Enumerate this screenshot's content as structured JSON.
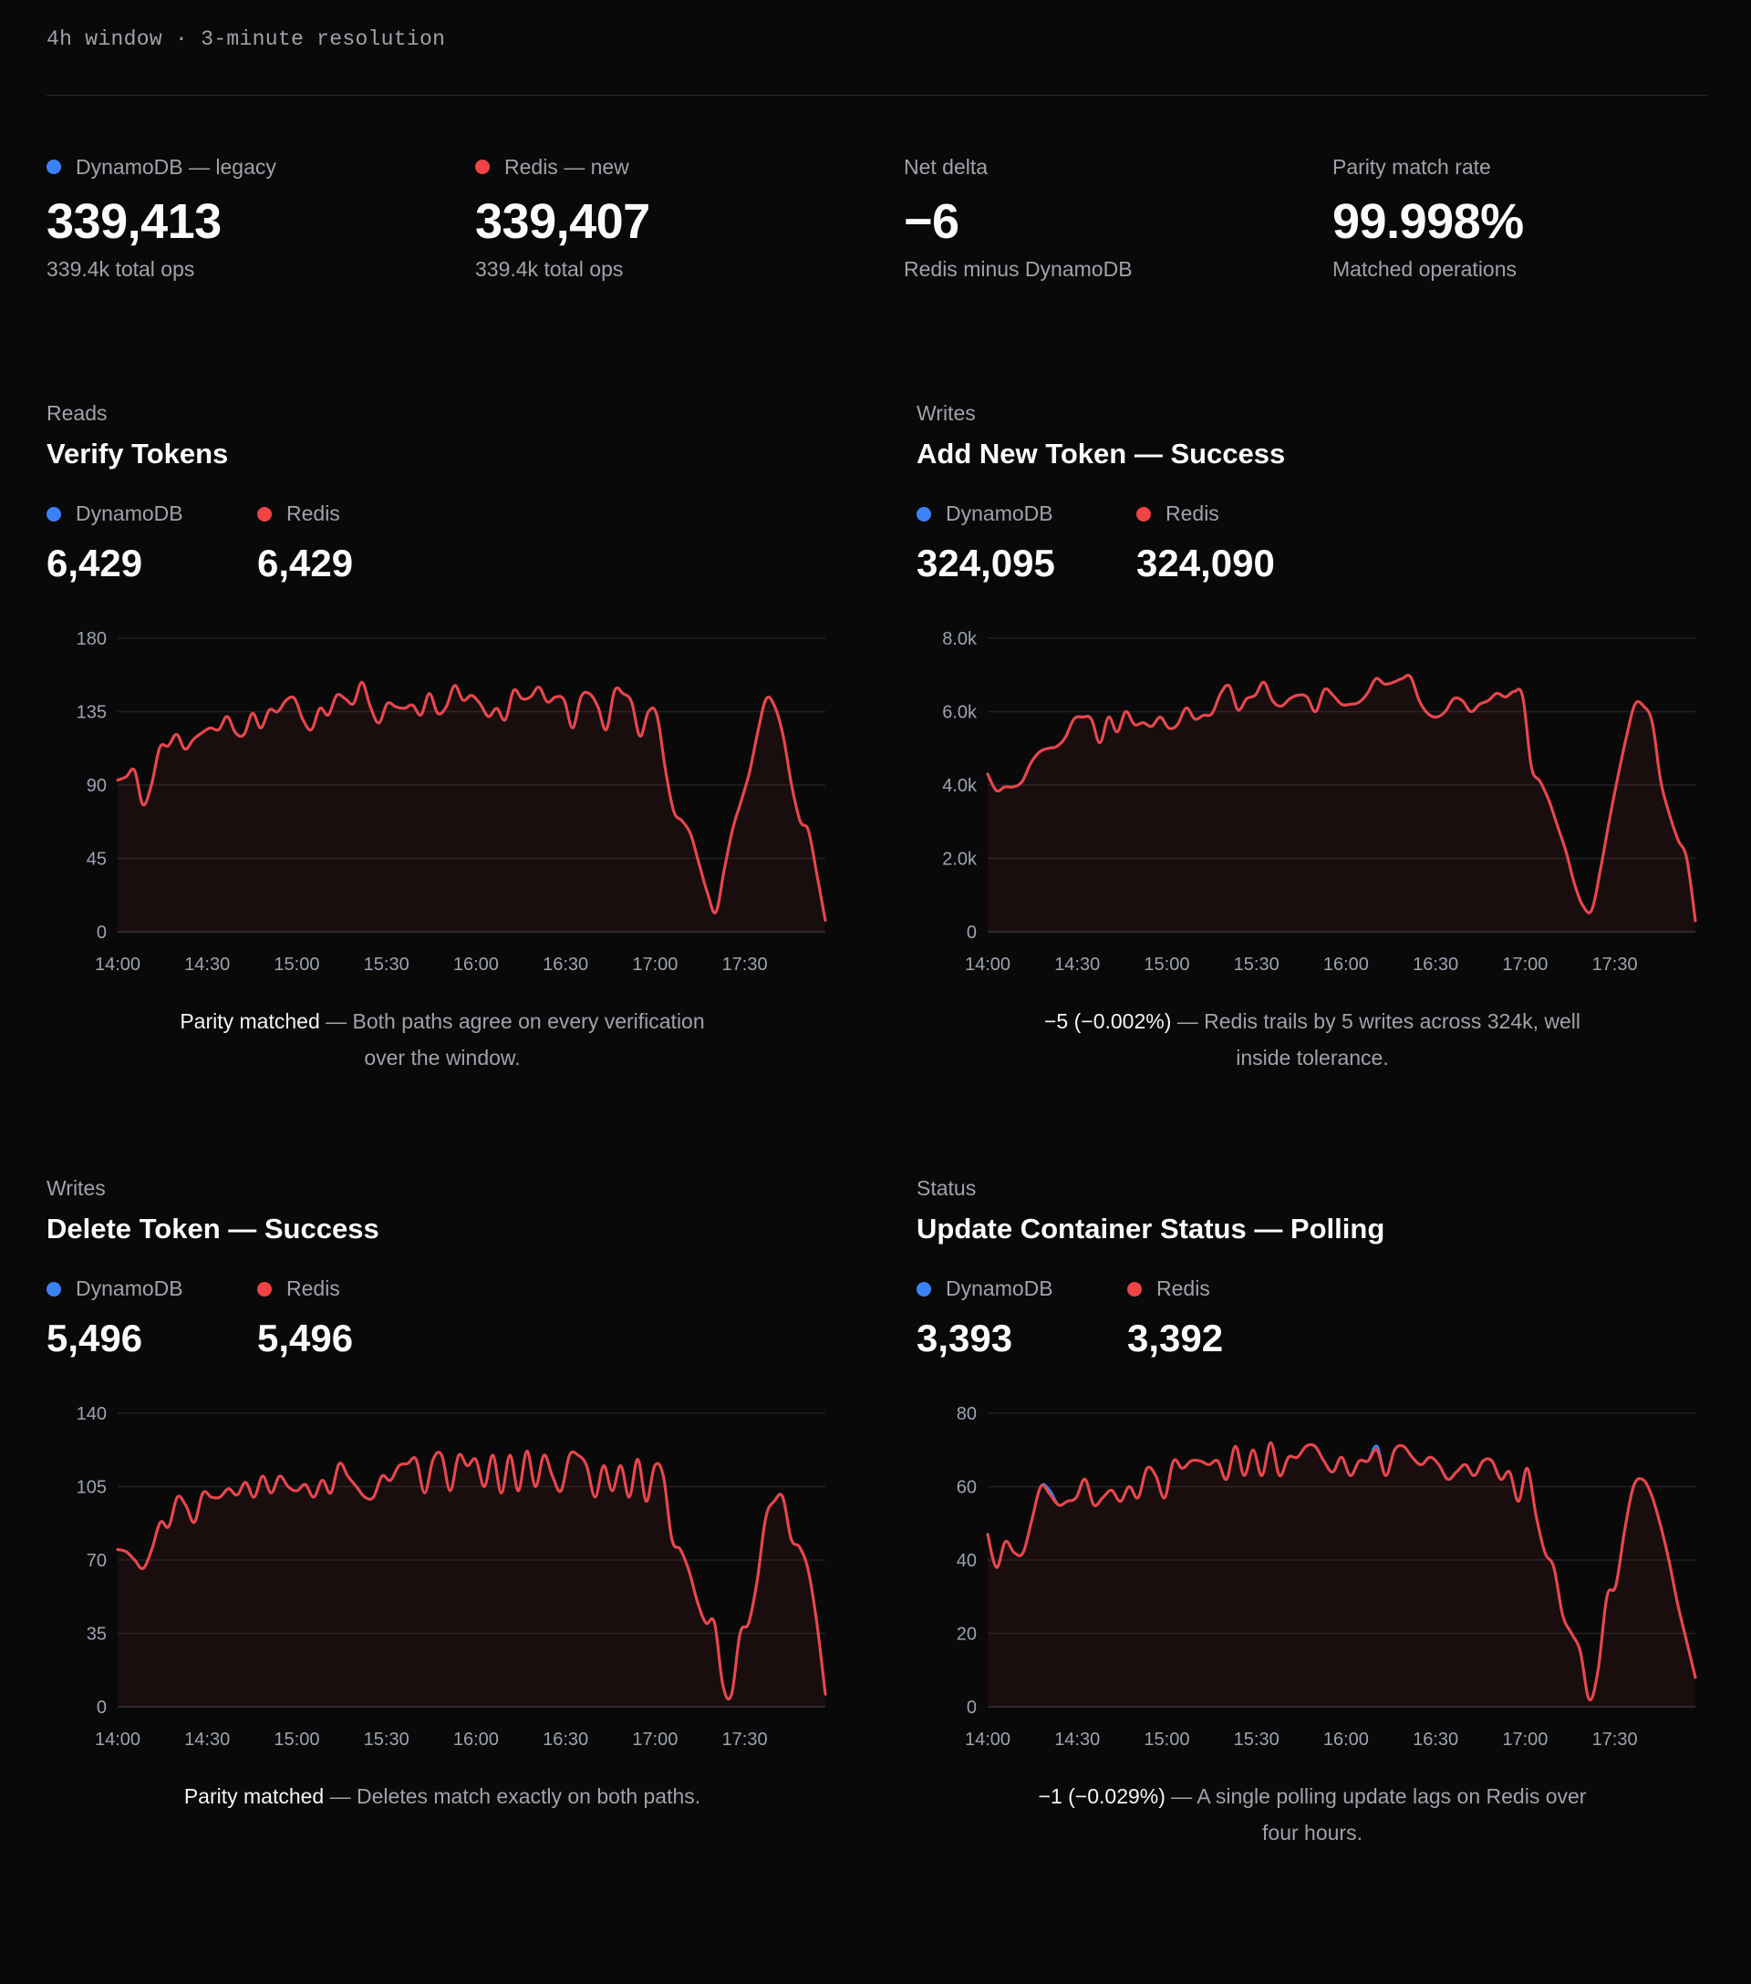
{
  "header": {
    "window_label": "4h window · 3-minute resolution"
  },
  "colors": {
    "dynamo": "#3b82f6",
    "redis": "#ef4444",
    "background": "#09090a",
    "grid": "#27272a"
  },
  "kpis": [
    {
      "label": "DynamoDB — legacy",
      "dot": "dynamo",
      "value": "339,413",
      "sub": "339.4k total ops"
    },
    {
      "label": "Redis — new",
      "dot": "redis",
      "value": "339,407",
      "sub": "339.4k total ops"
    },
    {
      "label": "Net delta",
      "value": "−6",
      "sub": "Redis minus DynamoDB"
    },
    {
      "label": "Parity match rate",
      "value": "99.998%",
      "sub": "Matched operations"
    }
  ],
  "panels": [
    {
      "category": "Reads",
      "title": "Verify Tokens",
      "dynamo_label": "DynamoDB",
      "dynamo_value": "6,429",
      "redis_label": "Redis",
      "redis_value": "6,429",
      "note_em": "Parity matched",
      "note_line1": " — Both paths agree on every verification",
      "note_line2": "over the window."
    },
    {
      "category": "Writes",
      "title": "Add New Token — Success",
      "dynamo_label": "DynamoDB",
      "dynamo_value": "324,095",
      "redis_label": "Redis",
      "redis_value": "324,090",
      "note_em": "−5 (−0.002%)",
      "note_line1": " — Redis trails by 5 writes across 324k, well",
      "note_line2": "inside tolerance."
    },
    {
      "category": "Writes",
      "title": "Delete Token — Success",
      "dynamo_label": "DynamoDB",
      "dynamo_value": "5,496",
      "redis_label": "Redis",
      "redis_value": "5,496",
      "note_em": "Parity matched",
      "note_line1": " — Deletes match exactly on both paths.",
      "note_line2": ""
    },
    {
      "category": "Status",
      "title": "Update Container Status — Polling",
      "dynamo_label": "DynamoDB",
      "dynamo_value": "3,393",
      "redis_label": "Redis",
      "redis_value": "3,392",
      "note_em": "−1 (−0.029%)",
      "note_line1": " — A single polling update lags on Redis over",
      "note_line2": "four hours."
    }
  ],
  "chart_data": [
    {
      "type": "line",
      "title": "Verify Tokens",
      "x_ticks": [
        "14:00",
        "14:30",
        "15:00",
        "15:30",
        "16:00",
        "16:30",
        "17:00",
        "17:30"
      ],
      "x_range": [
        "14:00",
        "17:57"
      ],
      "ylim": [
        0,
        180
      ],
      "y_ticks": [
        "0",
        "45",
        "90",
        "135",
        "180"
      ],
      "series": [
        {
          "name": "DynamoDB",
          "color": "#3b82f6",
          "values": [
            93,
            95,
            99,
            78,
            90,
            113,
            114,
            121,
            112,
            118,
            122,
            125,
            124,
            132,
            122,
            121,
            134,
            125,
            136,
            135,
            142,
            143,
            130,
            124,
            137,
            133,
            145,
            143,
            140,
            153,
            138,
            128,
            140,
            138,
            137,
            139,
            133,
            146,
            134,
            138,
            151,
            142,
            145,
            140,
            132,
            137,
            130,
            148,
            143,
            144,
            150,
            141,
            144,
            142,
            125,
            144,
            146,
            138,
            124,
            148,
            146,
            141,
            120,
            135,
            133,
            100,
            74,
            68,
            60,
            42,
            24,
            12,
            38,
            63,
            80,
            98,
            123,
            143,
            138,
            120,
            90,
            68,
            62,
            35,
            7
          ]
        },
        {
          "name": "Redis",
          "color": "#ef4444",
          "values": [
            93,
            95,
            99,
            78,
            90,
            113,
            114,
            121,
            112,
            118,
            122,
            125,
            124,
            132,
            122,
            121,
            134,
            125,
            136,
            135,
            142,
            143,
            130,
            124,
            137,
            133,
            145,
            143,
            140,
            153,
            138,
            128,
            140,
            138,
            137,
            139,
            133,
            146,
            134,
            138,
            151,
            142,
            145,
            140,
            132,
            137,
            130,
            148,
            143,
            144,
            150,
            141,
            144,
            142,
            125,
            144,
            146,
            138,
            124,
            148,
            146,
            141,
            120,
            135,
            133,
            100,
            74,
            68,
            60,
            42,
            24,
            12,
            38,
            63,
            80,
            98,
            123,
            143,
            138,
            120,
            90,
            68,
            62,
            35,
            7
          ]
        }
      ]
    },
    {
      "type": "line",
      "title": "Add New Token — Success",
      "x_ticks": [
        "14:00",
        "14:30",
        "15:00",
        "15:30",
        "16:00",
        "16:30",
        "17:00",
        "17:30"
      ],
      "x_range": [
        "14:00",
        "17:57"
      ],
      "ylim": [
        0,
        8000
      ],
      "y_ticks": [
        "0",
        "2.0k",
        "4.0k",
        "6.0k",
        "8.0k"
      ],
      "series": [
        {
          "name": "DynamoDB",
          "color": "#3b82f6",
          "values": [
            4300,
            3850,
            3950,
            3950,
            4100,
            4600,
            4900,
            5000,
            5050,
            5300,
            5800,
            5850,
            5800,
            5150,
            5850,
            5450,
            6000,
            5650,
            5700,
            5600,
            5850,
            5550,
            5650,
            6100,
            5800,
            5900,
            5950,
            6500,
            6700,
            6050,
            6350,
            6450,
            6800,
            6300,
            6150,
            6350,
            6450,
            6400,
            6000,
            6600,
            6450,
            6200,
            6200,
            6250,
            6500,
            6900,
            6750,
            6800,
            6900,
            6950,
            6300,
            5950,
            5850,
            6000,
            6350,
            6300,
            6000,
            6200,
            6300,
            6500,
            6400,
            6550,
            6400,
            4500,
            4100,
            3600,
            2900,
            2200,
            1300,
            700,
            600,
            1700,
            3000,
            4200,
            5300,
            6200,
            6150,
            5700,
            4100,
            3200,
            2500,
            2000,
            300
          ]
        },
        {
          "name": "Redis",
          "color": "#ef4444",
          "values": [
            4300,
            3850,
            3950,
            3950,
            4100,
            4600,
            4900,
            5000,
            5050,
            5300,
            5800,
            5850,
            5800,
            5150,
            5850,
            5450,
            6000,
            5650,
            5700,
            5600,
            5850,
            5550,
            5650,
            6100,
            5800,
            5900,
            5950,
            6500,
            6700,
            6050,
            6350,
            6450,
            6800,
            6300,
            6150,
            6350,
            6450,
            6400,
            6000,
            6600,
            6450,
            6200,
            6200,
            6250,
            6500,
            6900,
            6750,
            6800,
            6900,
            6950,
            6300,
            5950,
            5850,
            6000,
            6350,
            6300,
            6000,
            6200,
            6300,
            6500,
            6400,
            6550,
            6400,
            4500,
            4100,
            3600,
            2900,
            2200,
            1300,
            700,
            600,
            1700,
            3000,
            4200,
            5300,
            6200,
            6150,
            5700,
            4100,
            3200,
            2500,
            2000,
            300
          ]
        }
      ]
    },
    {
      "type": "line",
      "title": "Delete Token — Success",
      "x_ticks": [
        "14:00",
        "14:30",
        "15:00",
        "15:30",
        "16:00",
        "16:30",
        "17:00",
        "17:30"
      ],
      "x_range": [
        "14:00",
        "17:57"
      ],
      "ylim": [
        0,
        140
      ],
      "y_ticks": [
        "0",
        "35",
        "70",
        "105",
        "140"
      ],
      "series": [
        {
          "name": "DynamoDB",
          "color": "#3b82f6",
          "values": [
            75,
            74,
            70,
            66,
            75,
            88,
            86,
            100,
            96,
            88,
            102,
            100,
            100,
            104,
            101,
            107,
            100,
            110,
            102,
            110,
            105,
            103,
            106,
            100,
            108,
            102,
            116,
            110,
            105,
            100,
            100,
            110,
            108,
            115,
            116,
            118,
            102,
            118,
            120,
            103,
            120,
            115,
            118,
            105,
            120,
            102,
            120,
            103,
            122,
            105,
            120,
            110,
            103,
            120,
            120,
            115,
            100,
            115,
            103,
            115,
            100,
            118,
            98,
            115,
            110,
            80,
            75,
            65,
            50,
            40,
            40,
            10,
            6,
            35,
            40,
            60,
            90,
            98,
            100,
            80,
            76,
            65,
            40,
            6
          ]
        },
        {
          "name": "Redis",
          "color": "#ef4444",
          "values": [
            75,
            74,
            70,
            66,
            75,
            88,
            86,
            100,
            96,
            88,
            102,
            100,
            100,
            104,
            101,
            107,
            100,
            110,
            102,
            110,
            105,
            103,
            106,
            100,
            108,
            102,
            116,
            110,
            105,
            100,
            100,
            110,
            108,
            115,
            116,
            118,
            102,
            118,
            120,
            103,
            120,
            115,
            118,
            105,
            120,
            102,
            120,
            103,
            122,
            105,
            120,
            110,
            103,
            120,
            120,
            115,
            100,
            115,
            103,
            115,
            100,
            118,
            98,
            115,
            110,
            80,
            75,
            65,
            50,
            40,
            40,
            10,
            6,
            35,
            40,
            60,
            90,
            98,
            100,
            80,
            76,
            65,
            40,
            6
          ]
        }
      ]
    },
    {
      "type": "line",
      "title": "Update Container Status — Polling",
      "x_ticks": [
        "14:00",
        "14:30",
        "15:00",
        "15:30",
        "16:00",
        "16:30",
        "17:00",
        "17:30"
      ],
      "x_range": [
        "14:00",
        "17:57"
      ],
      "ylim": [
        0,
        80
      ],
      "y_ticks": [
        "0",
        "20",
        "40",
        "60",
        "80"
      ],
      "series": [
        {
          "name": "DynamoDB",
          "color": "#3b82f6",
          "values": [
            47,
            38,
            45,
            42,
            42,
            51,
            60,
            59,
            55,
            56,
            57,
            62,
            55,
            57,
            59,
            56,
            60,
            57,
            65,
            63,
            57,
            67,
            65,
            67,
            67,
            66,
            67,
            62,
            71,
            63,
            70,
            63,
            72,
            63,
            68,
            68,
            71,
            71,
            67,
            64,
            68,
            63,
            67,
            67,
            71,
            63,
            70,
            71,
            68,
            66,
            68,
            66,
            62,
            64,
            66,
            63,
            67,
            67,
            62,
            64,
            56,
            65,
            52,
            42,
            38,
            25,
            20,
            15,
            2,
            10,
            30,
            33,
            48,
            60,
            62,
            58,
            50,
            40,
            28,
            18,
            8
          ]
        },
        {
          "name": "Redis",
          "color": "#ef4444",
          "values": [
            47,
            38,
            45,
            42,
            42,
            51,
            60,
            58,
            55,
            56,
            57,
            62,
            55,
            57,
            59,
            56,
            60,
            57,
            65,
            63,
            57,
            67,
            65,
            67,
            67,
            66,
            67,
            62,
            71,
            63,
            70,
            63,
            72,
            63,
            68,
            68,
            71,
            71,
            67,
            64,
            68,
            63,
            67,
            67,
            70,
            63,
            70,
            71,
            68,
            66,
            68,
            66,
            62,
            64,
            66,
            63,
            67,
            67,
            62,
            64,
            56,
            65,
            52,
            42,
            38,
            25,
            20,
            15,
            2,
            10,
            30,
            33,
            48,
            60,
            62,
            58,
            50,
            40,
            28,
            18,
            8
          ]
        }
      ]
    }
  ]
}
